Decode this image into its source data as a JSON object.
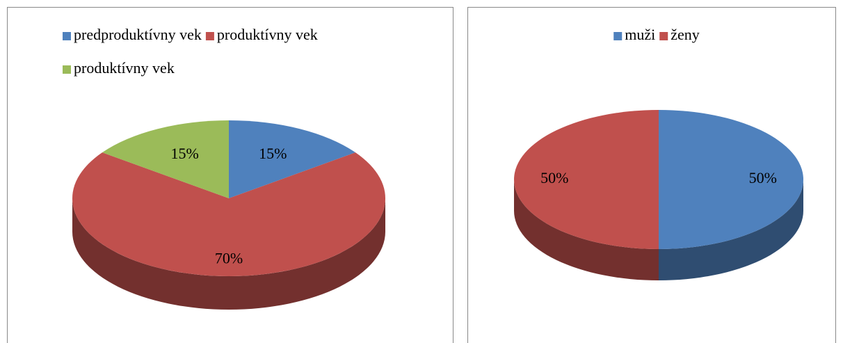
{
  "chart_data": [
    {
      "type": "pie3d",
      "categories": [
        "predproduktívny vek",
        "produktívny vek",
        "produktívny vek"
      ],
      "values": [
        15,
        70,
        15
      ],
      "value_labels": [
        "15%",
        "70%",
        "15%"
      ],
      "colors": [
        "#4f81bd",
        "#c0504d",
        "#9bbb59"
      ],
      "legend": "top"
    },
    {
      "type": "pie3d",
      "categories": [
        "muži",
        "ženy"
      ],
      "values": [
        50,
        50
      ],
      "value_labels": [
        "50%",
        "50%"
      ],
      "colors": [
        "#4f81bd",
        "#c0504d"
      ],
      "legend": "top"
    }
  ]
}
